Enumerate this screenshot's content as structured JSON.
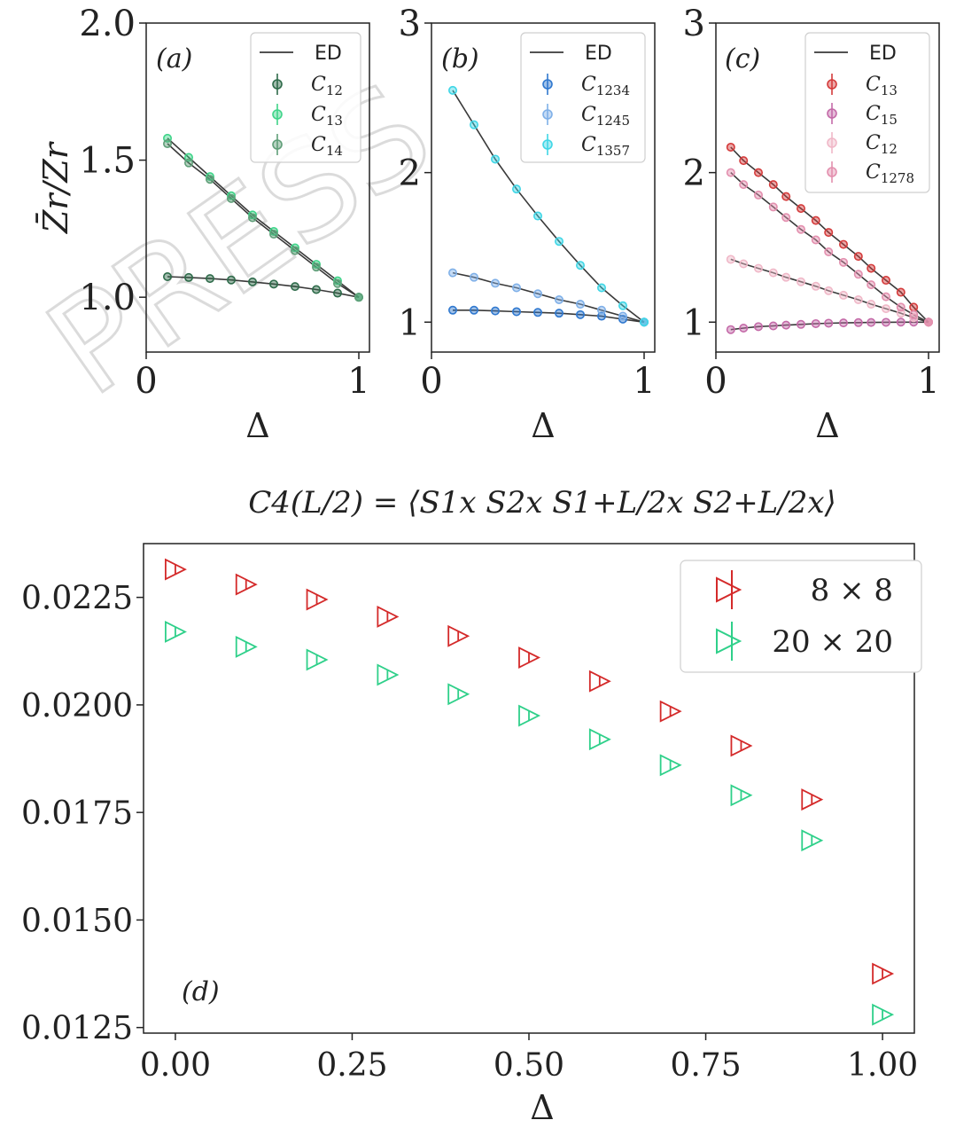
{
  "chart_data": [
    {
      "panel": "(a)",
      "type": "line",
      "xlabel": "Δ",
      "ylabel": "Z̄r/Zr",
      "xlim": [
        0,
        1.05
      ],
      "ylim": [
        0.8,
        2.0
      ],
      "xticks": [
        "0",
        "1"
      ],
      "yticks": [
        "1.0",
        "1.5",
        "2.0"
      ],
      "legend": [
        "ED",
        "C12",
        "C13",
        "C14"
      ],
      "series": [
        {
          "name": "C12",
          "color": "#2e6b4a",
          "x": [
            0.1,
            0.2,
            0.3,
            0.4,
            0.5,
            0.6,
            0.7,
            0.8,
            0.9,
            1.0
          ],
          "y": [
            1.075,
            1.072,
            1.068,
            1.063,
            1.056,
            1.048,
            1.039,
            1.028,
            1.015,
            1.0
          ],
          "ed": true
        },
        {
          "name": "C13",
          "color": "#3fd489",
          "x": [
            0.1,
            0.2,
            0.3,
            0.4,
            0.5,
            0.6,
            0.7,
            0.8,
            0.9,
            1.0
          ],
          "y": [
            1.58,
            1.51,
            1.44,
            1.37,
            1.3,
            1.24,
            1.18,
            1.12,
            1.06,
            1.0
          ],
          "ed": true
        },
        {
          "name": "C14",
          "color": "#5f9e78",
          "x": [
            0.1,
            0.2,
            0.3,
            0.4,
            0.5,
            0.6,
            0.7,
            0.8,
            0.9,
            1.0
          ],
          "y": [
            1.56,
            1.49,
            1.43,
            1.36,
            1.29,
            1.23,
            1.17,
            1.11,
            1.05,
            1.0
          ],
          "ed": true
        }
      ]
    },
    {
      "panel": "(b)",
      "type": "line",
      "xlabel": "Δ",
      "xlim": [
        0,
        1.05
      ],
      "ylim": [
        0.8,
        3.0
      ],
      "xticks": [
        "0",
        "1"
      ],
      "yticks": [
        "1",
        "2",
        "3"
      ],
      "legend": [
        "ED",
        "C1234",
        "C1245",
        "C1357"
      ],
      "series": [
        {
          "name": "C1234",
          "color": "#2f78cf",
          "x": [
            0.1,
            0.2,
            0.3,
            0.4,
            0.5,
            0.6,
            0.7,
            0.8,
            0.9,
            1.0
          ],
          "y": [
            1.08,
            1.08,
            1.075,
            1.07,
            1.065,
            1.06,
            1.05,
            1.04,
            1.02,
            1.0
          ],
          "ed": true
        },
        {
          "name": "C1245",
          "color": "#7fb0e8",
          "x": [
            0.1,
            0.2,
            0.3,
            0.4,
            0.5,
            0.6,
            0.7,
            0.8,
            0.9,
            1.0
          ],
          "y": [
            1.33,
            1.3,
            1.26,
            1.23,
            1.19,
            1.15,
            1.12,
            1.08,
            1.04,
            1.0
          ],
          "ed": true
        },
        {
          "name": "C1357",
          "color": "#3fd6e6",
          "x": [
            0.1,
            0.2,
            0.3,
            0.4,
            0.5,
            0.6,
            0.7,
            0.8,
            0.9,
            1.0
          ],
          "y": [
            2.55,
            2.32,
            2.09,
            1.89,
            1.71,
            1.54,
            1.38,
            1.23,
            1.11,
            1.0
          ],
          "ed": true
        }
      ]
    },
    {
      "panel": "(c)",
      "type": "line",
      "xlabel": "Δ",
      "xlim": [
        0,
        1.05
      ],
      "ylim": [
        0.8,
        3.0
      ],
      "xticks": [
        "0",
        "1"
      ],
      "yticks": [
        "1",
        "2",
        "3"
      ],
      "legend": [
        "ED",
        "C13",
        "C15",
        "C12",
        "C1278"
      ],
      "series": [
        {
          "name": "C13",
          "color": "#d43b3b",
          "x": [
            0.07,
            0.13,
            0.2,
            0.27,
            0.33,
            0.4,
            0.47,
            0.53,
            0.6,
            0.67,
            0.73,
            0.8,
            0.87,
            0.93,
            1.0
          ],
          "y": [
            2.17,
            2.08,
            2.0,
            1.92,
            1.84,
            1.76,
            1.68,
            1.6,
            1.52,
            1.44,
            1.36,
            1.28,
            1.2,
            1.1,
            1.0
          ],
          "ed": true
        },
        {
          "name": "C15",
          "color": "#c46aa8",
          "x": [
            0.07,
            0.13,
            0.2,
            0.27,
            0.33,
            0.4,
            0.47,
            0.53,
            0.6,
            0.67,
            0.73,
            0.8,
            0.87,
            0.93,
            1.0
          ],
          "y": [
            0.95,
            0.96,
            0.97,
            0.975,
            0.98,
            0.985,
            0.99,
            0.993,
            0.995,
            0.997,
            0.998,
            0.999,
            1.0,
            1.0,
            1.0
          ],
          "ed": true
        },
        {
          "name": "C12",
          "color": "#f0b8c8",
          "x": [
            0.07,
            0.13,
            0.2,
            0.27,
            0.33,
            0.4,
            0.47,
            0.53,
            0.6,
            0.67,
            0.73,
            0.8,
            0.87,
            0.93,
            1.0
          ],
          "y": [
            1.42,
            1.39,
            1.36,
            1.33,
            1.3,
            1.27,
            1.24,
            1.21,
            1.18,
            1.15,
            1.12,
            1.09,
            1.06,
            1.03,
            1.0
          ],
          "ed": true
        },
        {
          "name": "C1278",
          "color": "#e38fae",
          "x": [
            0.07,
            0.13,
            0.2,
            0.27,
            0.33,
            0.4,
            0.47,
            0.53,
            0.6,
            0.67,
            0.73,
            0.8,
            0.87,
            0.93,
            1.0
          ],
          "y": [
            2.0,
            1.92,
            1.85,
            1.77,
            1.7,
            1.62,
            1.55,
            1.47,
            1.4,
            1.32,
            1.25,
            1.17,
            1.1,
            1.05,
            1.0
          ],
          "ed": true
        }
      ]
    },
    {
      "panel": "(d)",
      "type": "scatter",
      "title": "C4(L/2) = ⟨S1x S2x S1+L/2x S2+L/2x⟩",
      "xlabel": "Δ",
      "xlim": [
        -0.045,
        1.045
      ],
      "ylim": [
        0.01237,
        0.02375
      ],
      "xticks": [
        "0.00",
        "0.25",
        "0.50",
        "0.75",
        "1.00"
      ],
      "yticks": [
        "0.0125",
        "0.0150",
        "0.0175",
        "0.0200",
        "0.0225"
      ],
      "legend": [
        "8 × 8",
        "20 × 20"
      ],
      "legend_position": "top-right",
      "series": [
        {
          "name": "8 × 8",
          "color": "#d42a2a",
          "x": [
            0.0,
            0.1,
            0.2,
            0.3,
            0.4,
            0.5,
            0.6,
            0.7,
            0.8,
            0.9,
            1.0
          ],
          "y": [
            0.02315,
            0.0228,
            0.02245,
            0.02205,
            0.0216,
            0.0211,
            0.02055,
            0.01985,
            0.01905,
            0.0178,
            0.01375
          ]
        },
        {
          "name": "20 × 20",
          "color": "#2fd08a",
          "x": [
            0.0,
            0.1,
            0.2,
            0.3,
            0.4,
            0.5,
            0.6,
            0.7,
            0.8,
            0.9,
            1.0
          ],
          "y": [
            0.0217,
            0.02135,
            0.02105,
            0.0207,
            0.02025,
            0.01975,
            0.0192,
            0.0186,
            0.0179,
            0.01685,
            0.0128
          ]
        }
      ]
    }
  ]
}
